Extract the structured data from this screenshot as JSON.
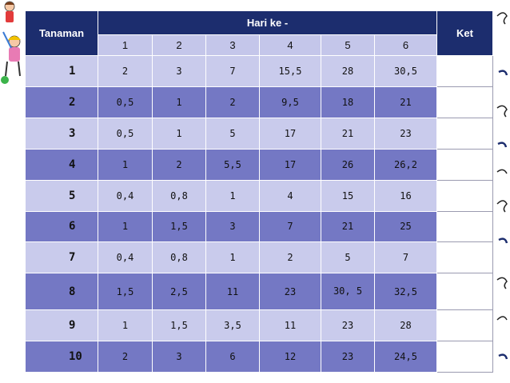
{
  "table": {
    "header": {
      "col_plant": "Tanaman",
      "group_label": "Hari ke -",
      "col_note": "Ket",
      "days": [
        "1",
        "2",
        "3",
        "4",
        "5",
        "6"
      ]
    },
    "rows": [
      {
        "plant": "1",
        "values": [
          "2",
          "3",
          "7",
          "15,5",
          "28",
          "30,5"
        ],
        "ket": ""
      },
      {
        "plant": "2",
        "values": [
          "0,5",
          "1",
          "2",
          "9,5",
          "18",
          "21"
        ],
        "ket": ""
      },
      {
        "plant": "3",
        "values": [
          "0,5",
          "1",
          "5",
          "17",
          "21",
          "23"
        ],
        "ket": ""
      },
      {
        "plant": "4",
        "values": [
          "1",
          "2",
          "5,5",
          "17",
          "26",
          "26,2"
        ],
        "ket": ""
      },
      {
        "plant": "5",
        "values": [
          "0,4",
          "0,8",
          "1",
          "4",
          "15",
          "16"
        ],
        "ket": ""
      },
      {
        "plant": "6",
        "values": [
          "1",
          "1,5",
          "3",
          "7",
          "21",
          "25"
        ],
        "ket": ""
      },
      {
        "plant": "7",
        "values": [
          "0,4",
          "0,8",
          "1",
          "2",
          "5",
          "7"
        ],
        "ket": ""
      },
      {
        "plant": "8",
        "values": [
          "1,5",
          "2,5",
          "11",
          "23",
          "30, 5",
          "32,5"
        ],
        "ket": ""
      },
      {
        "plant": "9",
        "values": [
          "1",
          "1,5",
          "3,5",
          "11",
          "23",
          "28"
        ],
        "ket": ""
      },
      {
        "plant": "10",
        "values": [
          "2",
          "3",
          "6",
          "12",
          "23",
          "24,5"
        ],
        "ket": ""
      }
    ]
  },
  "colors": {
    "header_dark": "#1c2d6e",
    "row_light": "#c9cbec",
    "row_dark": "#7478c4"
  },
  "decorations": {
    "left": "children-clipart",
    "right": "curly-swirl-pattern"
  }
}
